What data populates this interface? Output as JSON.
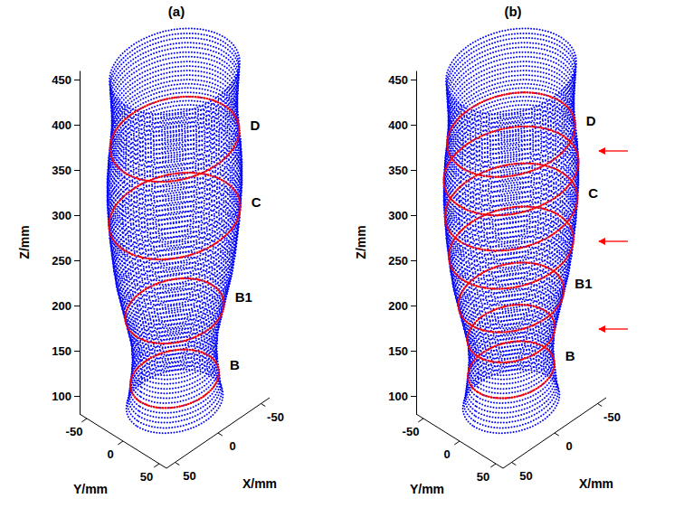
{
  "chart_data": [
    {
      "type": "scatter3d",
      "title": "(a)",
      "xlabel": "X/mm",
      "ylabel": "Y/mm",
      "zlabel": "Z/mm",
      "xlim": [
        -60,
        60
      ],
      "xticks": [
        -50,
        0,
        50
      ],
      "ylim": [
        -60,
        60
      ],
      "yticks": [
        -50,
        0,
        50
      ],
      "zlim": [
        80,
        460
      ],
      "zticks": [
        100,
        150,
        200,
        250,
        300,
        350,
        400,
        450
      ],
      "color": "#0000ff",
      "z": [
        85,
        90,
        95,
        100,
        105,
        110,
        115,
        120,
        125,
        130,
        135,
        140,
        145,
        150,
        155,
        160,
        165,
        170,
        175,
        180,
        185,
        190,
        195,
        200,
        205,
        210,
        215,
        220,
        225,
        230,
        235,
        240,
        245,
        250,
        255,
        260,
        265,
        270,
        275,
        280,
        285,
        290,
        295,
        300,
        305,
        310,
        315,
        320,
        325,
        330,
        335,
        340,
        345,
        350,
        355,
        360,
        365,
        370,
        375,
        380,
        385,
        390,
        395,
        400,
        405,
        410,
        415,
        420,
        425,
        430,
        435,
        440,
        445,
        450
      ],
      "radius": [
        43,
        42,
        41,
        40.5,
        40,
        39.5,
        39,
        38.5,
        38,
        38,
        37.5,
        37.5,
        38,
        38,
        38.5,
        39,
        40,
        41,
        42,
        43,
        44,
        45,
        46,
        47,
        48,
        49,
        50,
        51,
        52,
        52.5,
        53,
        54,
        54.5,
        55,
        55.5,
        56,
        56.5,
        57,
        57.5,
        58,
        58,
        58.5,
        59,
        59,
        59.5,
        59.5,
        60,
        60,
        60,
        60,
        60,
        60,
        59.5,
        59.5,
        59,
        59,
        58.5,
        58,
        57.5,
        57,
        57,
        56.5,
        56,
        56,
        56,
        56,
        56,
        56.5,
        56.5,
        57,
        57,
        57.5,
        57.5,
        58
      ],
      "contours": {
        "color": "#ff0000",
        "z": [
          110,
          185,
          290,
          375
        ],
        "labels": [
          "B",
          "B1",
          "C",
          "D"
        ]
      }
    },
    {
      "type": "scatter3d",
      "title": "(b)",
      "xlabel": "X/mm",
      "ylabel": "Y/mm",
      "zlabel": "Z/mm",
      "xlim": [
        -60,
        60
      ],
      "xticks": [
        -50,
        0,
        50
      ],
      "ylim": [
        -60,
        60
      ],
      "yticks": [
        -50,
        0,
        50
      ],
      "zlim": [
        80,
        460
      ],
      "zticks": [
        100,
        150,
        200,
        250,
        300,
        350,
        400,
        450
      ],
      "color": "#0000ff",
      "z": [
        85,
        90,
        95,
        100,
        105,
        110,
        115,
        120,
        125,
        130,
        135,
        140,
        145,
        150,
        155,
        160,
        165,
        170,
        175,
        180,
        185,
        190,
        195,
        200,
        205,
        210,
        215,
        220,
        225,
        230,
        235,
        240,
        245,
        250,
        255,
        260,
        265,
        270,
        275,
        280,
        285,
        290,
        295,
        300,
        305,
        310,
        315,
        320,
        325,
        330,
        335,
        340,
        345,
        350,
        355,
        360,
        365,
        370,
        375,
        380,
        385,
        390,
        395,
        400,
        405,
        410,
        415,
        420,
        425,
        430,
        435,
        440,
        445,
        450
      ],
      "radius": [
        43,
        42,
        41,
        40.5,
        40,
        39.5,
        39,
        38.5,
        38,
        38,
        37.5,
        37.5,
        38,
        38,
        38.5,
        39,
        40,
        41,
        42,
        43,
        44,
        45,
        46,
        47,
        48,
        49,
        50,
        51,
        52,
        52.5,
        53,
        54,
        54.5,
        55,
        55.5,
        56,
        56.5,
        57,
        57.5,
        58,
        58,
        58.5,
        59,
        59,
        59.5,
        59.5,
        60,
        60,
        60,
        60,
        60,
        60,
        59.5,
        59.5,
        59,
        59,
        58.5,
        58,
        57.5,
        57,
        57,
        56.5,
        56,
        56,
        56,
        56,
        56,
        56.5,
        56.5,
        57,
        57,
        57.5,
        57.5,
        58
      ],
      "contours": {
        "color": "#ff0000",
        "z": [
          120,
          160,
          200,
          255,
          300,
          340,
          380
        ],
        "labels": [
          "B",
          null,
          "B1",
          null,
          "C",
          null,
          "D"
        ]
      },
      "arrows": {
        "color": "#ff0000",
        "z": [
          362,
          262,
          165
        ]
      }
    }
  ]
}
